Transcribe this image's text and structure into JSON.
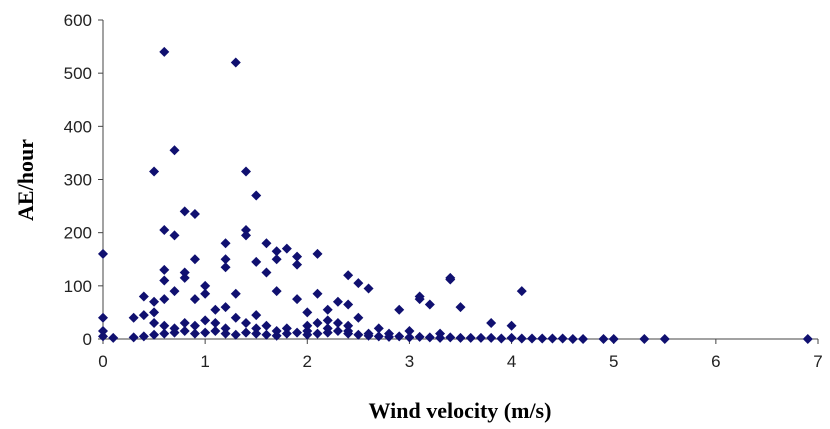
{
  "chart_data": {
    "type": "scatter",
    "x_label": "Wind velocity (m/s)",
    "y_label": "AE/hour",
    "color": "#101070",
    "xlim": [
      0,
      7
    ],
    "xticks": [
      0,
      1,
      2,
      3,
      4,
      5,
      6,
      7
    ],
    "ylim": [
      0,
      600
    ],
    "yticks": [
      0,
      100,
      200,
      300,
      400,
      500,
      600
    ],
    "x": [
      0,
      0,
      0,
      0,
      0.1,
      0.5,
      0.6,
      0.6,
      0.7,
      0.7,
      0.8,
      0.9,
      0.6,
      0.6,
      0.6,
      0.5,
      0.4,
      0.7,
      0.8,
      0.8,
      0.9,
      1.0,
      1.0,
      0.9,
      1.3,
      1.4,
      1.4,
      1.4,
      1.5,
      1.2,
      1.2,
      1.2,
      1.5,
      1.6,
      1.6,
      1.7,
      1.7,
      1.8,
      1.9,
      1.9,
      1.7,
      2.1,
      1.9,
      2.1,
      2.4,
      2.5,
      2.6,
      2.3,
      2.4,
      2.9,
      3.1,
      3.1,
      3.4,
      3.4,
      3.5,
      3.2,
      3.8,
      4.0,
      4.1,
      1.3,
      1.2,
      1.1,
      1.5,
      2.0,
      2.2,
      2.5,
      0.3,
      0.4,
      0.5,
      0.5,
      0.3,
      0.4,
      0.5,
      0.6,
      0.7,
      0.8,
      0.9,
      1.0,
      1.1,
      1.2,
      1.3,
      1.4,
      1.5,
      1.6,
      1.7,
      1.8,
      1.9,
      2.0,
      2.1,
      2.2,
      2.3,
      2.4,
      2.5,
      2.6,
      2.7,
      2.8,
      2.9,
      3.0,
      3.1,
      3.2,
      3.3,
      3.4,
      3.5,
      3.6,
      3.7,
      3.8,
      3.9,
      4.0,
      4.1,
      4.2,
      4.3,
      4.4,
      4.5,
      4.6,
      4.7,
      0.6,
      0.8,
      1.0,
      1.1,
      1.3,
      1.4,
      1.6,
      1.8,
      2.0,
      2.1,
      2.2,
      2.3,
      2.4,
      2.7,
      3.0,
      3.3,
      0.7,
      0.9,
      1.2,
      1.5,
      1.7,
      2.0,
      2.2,
      2.4,
      2.6,
      2.8,
      4.9,
      5.0,
      5.3,
      5.5,
      6.9
    ],
    "values": [
      160,
      40,
      15,
      5,
      2,
      315,
      540,
      205,
      355,
      195,
      240,
      235,
      130,
      110,
      75,
      70,
      80,
      90,
      125,
      115,
      150,
      100,
      85,
      75,
      520,
      315,
      205,
      195,
      270,
      180,
      150,
      135,
      145,
      180,
      125,
      165,
      150,
      170,
      155,
      140,
      90,
      160,
      75,
      85,
      120,
      105,
      95,
      70,
      65,
      55,
      80,
      75,
      115,
      112,
      60,
      65,
      30,
      25,
      90,
      85,
      60,
      55,
      45,
      50,
      55,
      40,
      40,
      45,
      50,
      30,
      3,
      5,
      8,
      10,
      12,
      15,
      10,
      12,
      15,
      10,
      8,
      12,
      10,
      8,
      6,
      10,
      12,
      8,
      10,
      12,
      15,
      10,
      8,
      6,
      5,
      4,
      5,
      3,
      4,
      3,
      2,
      3,
      2,
      2,
      2,
      2,
      1,
      2,
      1,
      1,
      1,
      1,
      1,
      0,
      0,
      25,
      30,
      35,
      30,
      40,
      30,
      25,
      20,
      25,
      30,
      35,
      30,
      25,
      20,
      15,
      10,
      20,
      25,
      20,
      20,
      15,
      15,
      20,
      15,
      10,
      10,
      0,
      0,
      0,
      0,
      0
    ]
  }
}
